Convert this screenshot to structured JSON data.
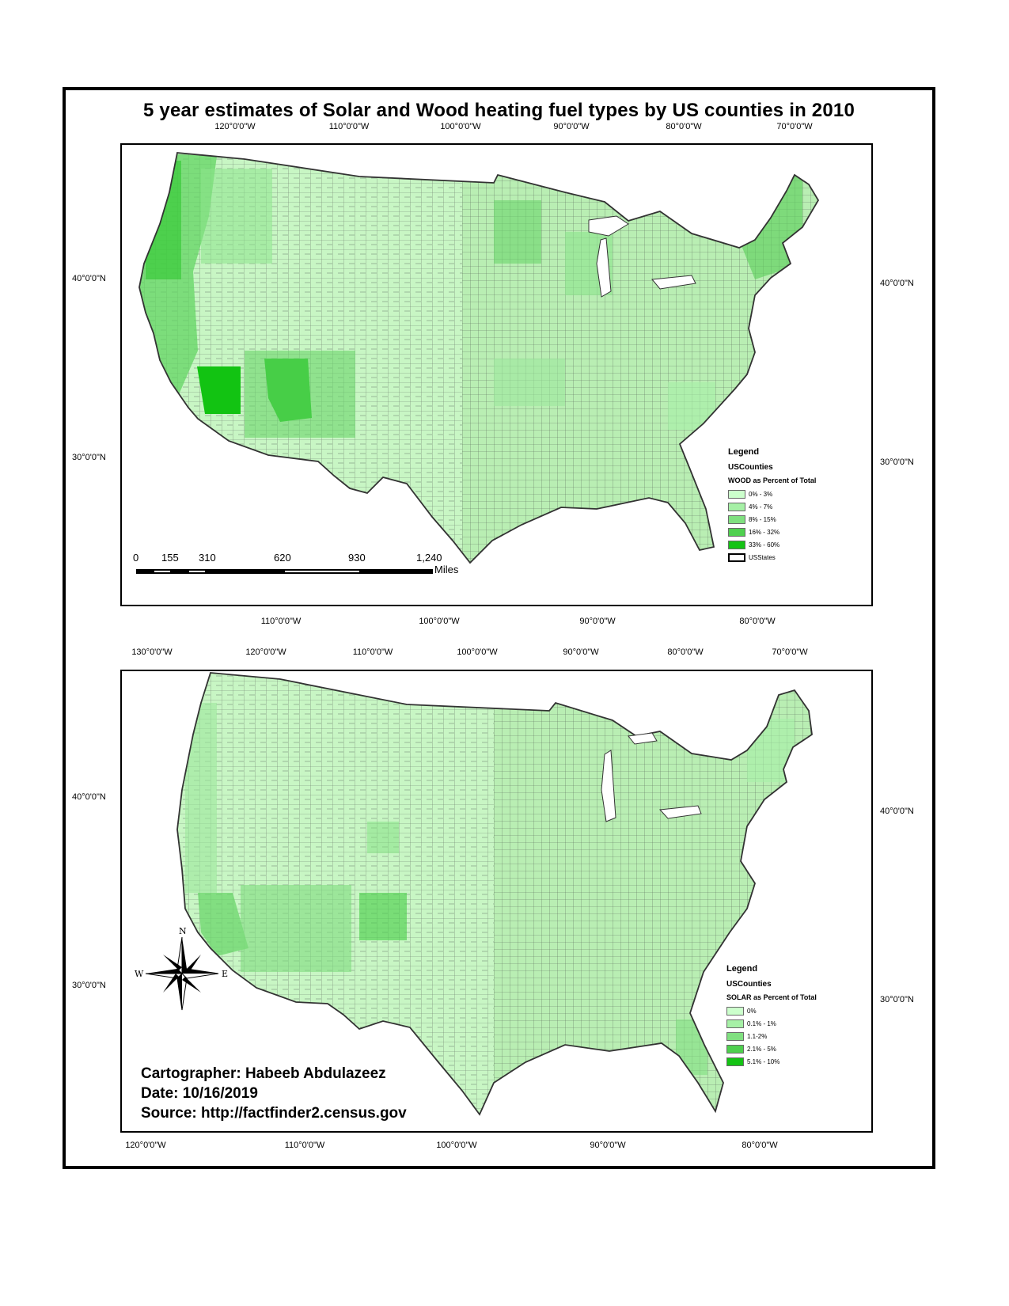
{
  "title": "5 year estimates of Solar and Wood heating fuel types by US counties in 2010",
  "top_map": {
    "top_ticks": [
      "120°0'0\"W",
      "110°0'0\"W",
      "100°0'0\"W",
      "90°0'0\"W",
      "80°0'0\"W",
      "70°0'0\"W"
    ],
    "bottom_ticks": [
      "110°0'0\"W",
      "100°0'0\"W",
      "90°0'0\"W",
      "80°0'0\"W"
    ],
    "left_ticks": [
      "40°0'0\"N",
      "30°0'0\"N"
    ],
    "right_ticks": [
      "40°0'0\"N",
      "30°0'0\"N"
    ],
    "legend": {
      "title": "Legend",
      "layer": "USCounties",
      "field": "WOOD as Percent of Total",
      "classes": [
        {
          "label": "0% - 3%",
          "color": "#ccffcc"
        },
        {
          "label": "4% - 7%",
          "color": "#a6f0a6"
        },
        {
          "label": "8% - 15%",
          "color": "#80e080"
        },
        {
          "label": "16% - 32%",
          "color": "#4fd04f"
        },
        {
          "label": "33% - 60%",
          "color": "#14c314"
        }
      ],
      "states_label": "USStates"
    },
    "scale_bar": {
      "labels": [
        "0",
        "155",
        "310",
        "620",
        "930",
        "1,240"
      ],
      "unit": "Miles"
    }
  },
  "bottom_map": {
    "top_ticks": [
      "130°0'0\"W",
      "120°0'0\"W",
      "110°0'0\"W",
      "100°0'0\"W",
      "90°0'0\"W",
      "80°0'0\"W",
      "70°0'0\"W"
    ],
    "bottom_ticks": [
      "120°0'0\"W",
      "110°0'0\"W",
      "100°0'0\"W",
      "90°0'0\"W",
      "80°0'0\"W"
    ],
    "left_ticks": [
      "40°0'0\"N",
      "30°0'0\"N"
    ],
    "right_ticks": [
      "40°0'0\"N",
      "30°0'0\"N"
    ],
    "legend": {
      "title": "Legend",
      "layer": "USCounties",
      "field": "SOLAR as Percent of Total",
      "classes": [
        {
          "label": "0%",
          "color": "#ccffcc"
        },
        {
          "label": "0.1% - 1%",
          "color": "#a6f0a6"
        },
        {
          "label": "1.1-2%",
          "color": "#80e080"
        },
        {
          "label": "2.1% - 5%",
          "color": "#4fd04f"
        },
        {
          "label": "5.1% - 10%",
          "color": "#14c314"
        }
      ]
    },
    "north_arrow": {
      "n": "N",
      "s": "S",
      "e": "E",
      "w": "W"
    }
  },
  "credits": {
    "cartographer": "Cartographer: Habeeb Abdulazeez",
    "date": "Date: 10/16/2019",
    "source": "Source: http://factfinder2.census.gov"
  }
}
